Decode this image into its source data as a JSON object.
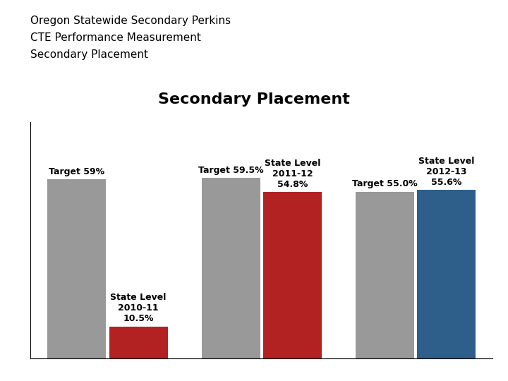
{
  "chart_data": {
    "type": "bar",
    "title": "Secondary Placement",
    "annotations": [
      "Oregon Statewide Secondary Perkins",
      "CTE Performance Measurement",
      "Secondary Placement"
    ],
    "categories": [
      null,
      null,
      null
    ],
    "series": [
      {
        "color": "#999999",
        "values": [
          59,
          59.5,
          55
        ],
        "value_labels": [
          "Target 59%",
          "Target 59.5%",
          "Target 55.0%"
        ]
      },
      {
        "colors": [
          "#b22222",
          "#b22222",
          "#2e5f8a"
        ],
        "values": [
          10.5,
          54.8,
          55.6
        ],
        "value_labels": [
          "State Level\n2010-11\n10.5%",
          "State Level\n2011-12\n54.8%",
          "State Level\n2012-13\n55.6%"
        ]
      }
    ],
    "ylim": [
      0,
      78
    ],
    "grid": false,
    "data_labels": true,
    "tick_labels": false
  }
}
